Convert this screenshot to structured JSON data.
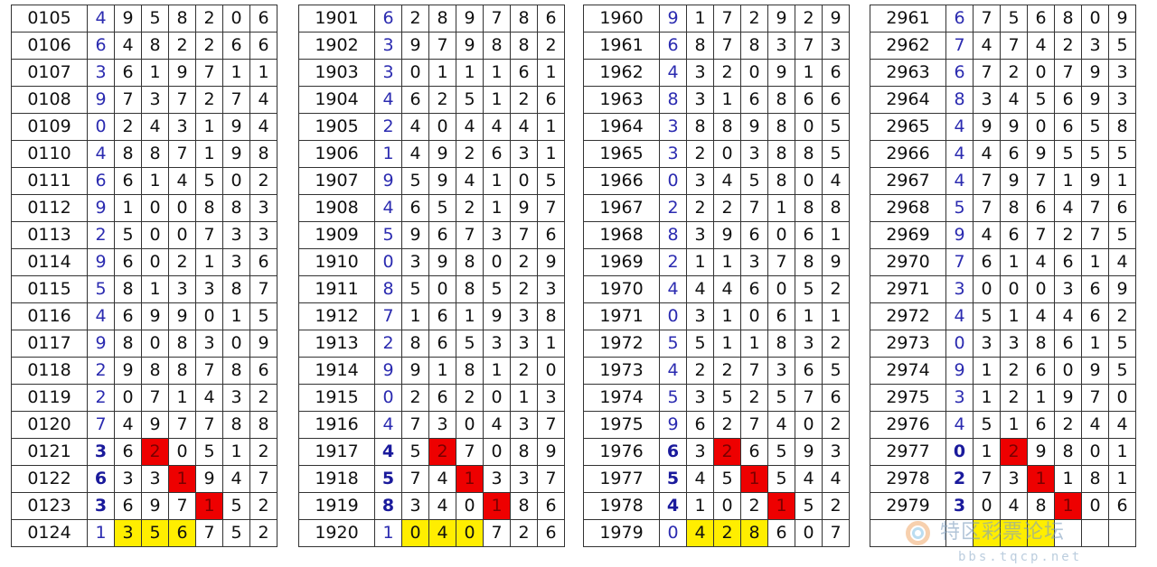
{
  "colors": {
    "first_digit": "#2b2bb0",
    "highlight_red": "#ee0000",
    "highlight_yellow": "#ffee00"
  },
  "watermark": {
    "text": "特区彩票论坛",
    "url": "bbs.tqcp.net"
  },
  "tables": [
    {
      "rows": [
        {
          "id": "0105",
          "digits": [
            "4",
            "9",
            "5",
            "8",
            "2",
            "0",
            "6"
          ]
        },
        {
          "id": "0106",
          "digits": [
            "6",
            "4",
            "8",
            "2",
            "2",
            "6",
            "6"
          ]
        },
        {
          "id": "0107",
          "digits": [
            "3",
            "6",
            "1",
            "9",
            "7",
            "1",
            "1"
          ]
        },
        {
          "id": "0108",
          "digits": [
            "9",
            "7",
            "3",
            "7",
            "2",
            "7",
            "4"
          ]
        },
        {
          "id": "0109",
          "digits": [
            "0",
            "2",
            "4",
            "3",
            "1",
            "9",
            "4"
          ]
        },
        {
          "id": "0110",
          "digits": [
            "4",
            "8",
            "8",
            "7",
            "1",
            "9",
            "8"
          ]
        },
        {
          "id": "0111",
          "digits": [
            "6",
            "6",
            "1",
            "4",
            "5",
            "0",
            "2"
          ]
        },
        {
          "id": "0112",
          "digits": [
            "9",
            "1",
            "0",
            "0",
            "8",
            "8",
            "3"
          ]
        },
        {
          "id": "0113",
          "digits": [
            "2",
            "5",
            "0",
            "0",
            "7",
            "3",
            "3"
          ]
        },
        {
          "id": "0114",
          "digits": [
            "9",
            "6",
            "0",
            "2",
            "1",
            "3",
            "6"
          ]
        },
        {
          "id": "0115",
          "digits": [
            "5",
            "8",
            "1",
            "3",
            "3",
            "8",
            "7"
          ]
        },
        {
          "id": "0116",
          "digits": [
            "4",
            "6",
            "9",
            "9",
            "0",
            "1",
            "5"
          ]
        },
        {
          "id": "0117",
          "digits": [
            "9",
            "8",
            "0",
            "8",
            "3",
            "0",
            "9"
          ]
        },
        {
          "id": "0118",
          "digits": [
            "2",
            "9",
            "8",
            "8",
            "7",
            "8",
            "6"
          ]
        },
        {
          "id": "0119",
          "digits": [
            "2",
            "0",
            "7",
            "1",
            "4",
            "3",
            "2"
          ]
        },
        {
          "id": "0120",
          "digits": [
            "7",
            "4",
            "9",
            "7",
            "7",
            "8",
            "8"
          ]
        },
        {
          "id": "0121",
          "digits": [
            "3",
            "6",
            "2",
            "0",
            "5",
            "1",
            "2"
          ]
        },
        {
          "id": "0122",
          "digits": [
            "6",
            "3",
            "3",
            "1",
            "9",
            "4",
            "7"
          ]
        },
        {
          "id": "0123",
          "digits": [
            "3",
            "6",
            "9",
            "7",
            "1",
            "5",
            "2"
          ]
        },
        {
          "id": "0124",
          "digits": [
            "1",
            "3",
            "5",
            "6",
            "7",
            "5",
            "2"
          ]
        }
      ]
    },
    {
      "rows": [
        {
          "id": "1901",
          "digits": [
            "6",
            "2",
            "8",
            "9",
            "7",
            "8",
            "6"
          ]
        },
        {
          "id": "1902",
          "digits": [
            "3",
            "9",
            "7",
            "9",
            "8",
            "8",
            "2"
          ]
        },
        {
          "id": "1903",
          "digits": [
            "3",
            "0",
            "1",
            "1",
            "1",
            "6",
            "1"
          ]
        },
        {
          "id": "1904",
          "digits": [
            "4",
            "6",
            "2",
            "5",
            "1",
            "2",
            "6"
          ]
        },
        {
          "id": "1905",
          "digits": [
            "2",
            "4",
            "0",
            "4",
            "4",
            "4",
            "1"
          ]
        },
        {
          "id": "1906",
          "digits": [
            "1",
            "4",
            "9",
            "2",
            "6",
            "3",
            "1"
          ]
        },
        {
          "id": "1907",
          "digits": [
            "9",
            "5",
            "9",
            "4",
            "1",
            "0",
            "5"
          ]
        },
        {
          "id": "1908",
          "digits": [
            "4",
            "6",
            "5",
            "2",
            "1",
            "9",
            "7"
          ]
        },
        {
          "id": "1909",
          "digits": [
            "5",
            "9",
            "6",
            "7",
            "3",
            "7",
            "6"
          ]
        },
        {
          "id": "1910",
          "digits": [
            "0",
            "3",
            "9",
            "8",
            "0",
            "2",
            "9"
          ]
        },
        {
          "id": "1911",
          "digits": [
            "8",
            "5",
            "0",
            "8",
            "5",
            "2",
            "3"
          ]
        },
        {
          "id": "1912",
          "digits": [
            "7",
            "1",
            "6",
            "1",
            "9",
            "3",
            "8"
          ]
        },
        {
          "id": "1913",
          "digits": [
            "2",
            "8",
            "6",
            "5",
            "3",
            "3",
            "1"
          ]
        },
        {
          "id": "1914",
          "digits": [
            "9",
            "9",
            "1",
            "8",
            "1",
            "2",
            "0"
          ]
        },
        {
          "id": "1915",
          "digits": [
            "0",
            "2",
            "6",
            "2",
            "0",
            "1",
            "3"
          ]
        },
        {
          "id": "1916",
          "digits": [
            "4",
            "7",
            "3",
            "0",
            "4",
            "3",
            "7"
          ]
        },
        {
          "id": "1917",
          "digits": [
            "4",
            "5",
            "2",
            "7",
            "0",
            "8",
            "9"
          ]
        },
        {
          "id": "1918",
          "digits": [
            "5",
            "7",
            "4",
            "1",
            "3",
            "3",
            "7"
          ]
        },
        {
          "id": "1919",
          "digits": [
            "8",
            "3",
            "4",
            "0",
            "1",
            "8",
            "6"
          ]
        },
        {
          "id": "1920",
          "digits": [
            "1",
            "0",
            "4",
            "0",
            "7",
            "2",
            "6"
          ]
        }
      ]
    },
    {
      "rows": [
        {
          "id": "1960",
          "digits": [
            "9",
            "1",
            "7",
            "2",
            "9",
            "2",
            "9"
          ]
        },
        {
          "id": "1961",
          "digits": [
            "6",
            "8",
            "7",
            "8",
            "3",
            "7",
            "3"
          ]
        },
        {
          "id": "1962",
          "digits": [
            "4",
            "3",
            "2",
            "0",
            "9",
            "1",
            "6"
          ]
        },
        {
          "id": "1963",
          "digits": [
            "8",
            "3",
            "1",
            "6",
            "8",
            "6",
            "6"
          ]
        },
        {
          "id": "1964",
          "digits": [
            "3",
            "8",
            "8",
            "9",
            "8",
            "0",
            "5"
          ]
        },
        {
          "id": "1965",
          "digits": [
            "3",
            "2",
            "0",
            "3",
            "8",
            "8",
            "5"
          ]
        },
        {
          "id": "1966",
          "digits": [
            "0",
            "3",
            "4",
            "5",
            "8",
            "0",
            "4"
          ]
        },
        {
          "id": "1967",
          "digits": [
            "2",
            "2",
            "2",
            "7",
            "1",
            "8",
            "8"
          ]
        },
        {
          "id": "1968",
          "digits": [
            "8",
            "3",
            "9",
            "6",
            "0",
            "6",
            "1"
          ]
        },
        {
          "id": "1969",
          "digits": [
            "2",
            "1",
            "1",
            "3",
            "7",
            "8",
            "9"
          ]
        },
        {
          "id": "1970",
          "digits": [
            "4",
            "4",
            "4",
            "6",
            "0",
            "5",
            "2"
          ]
        },
        {
          "id": "1971",
          "digits": [
            "0",
            "3",
            "1",
            "0",
            "6",
            "1",
            "1"
          ]
        },
        {
          "id": "1972",
          "digits": [
            "5",
            "5",
            "1",
            "1",
            "8",
            "3",
            "2"
          ]
        },
        {
          "id": "1973",
          "digits": [
            "4",
            "2",
            "2",
            "7",
            "3",
            "6",
            "5"
          ]
        },
        {
          "id": "1974",
          "digits": [
            "5",
            "3",
            "5",
            "2",
            "5",
            "7",
            "6"
          ]
        },
        {
          "id": "1975",
          "digits": [
            "9",
            "6",
            "2",
            "7",
            "4",
            "0",
            "2"
          ]
        },
        {
          "id": "1976",
          "digits": [
            "6",
            "3",
            "2",
            "6",
            "5",
            "9",
            "3"
          ]
        },
        {
          "id": "1977",
          "digits": [
            "5",
            "4",
            "5",
            "1",
            "5",
            "4",
            "4"
          ]
        },
        {
          "id": "1978",
          "digits": [
            "4",
            "1",
            "0",
            "2",
            "1",
            "5",
            "2"
          ]
        },
        {
          "id": "1979",
          "digits": [
            "0",
            "4",
            "2",
            "8",
            "6",
            "0",
            "7"
          ]
        }
      ]
    },
    {
      "rows": [
        {
          "id": "2961",
          "digits": [
            "6",
            "7",
            "5",
            "6",
            "8",
            "0",
            "9"
          ]
        },
        {
          "id": "2962",
          "digits": [
            "7",
            "4",
            "7",
            "4",
            "2",
            "3",
            "5"
          ]
        },
        {
          "id": "2963",
          "digits": [
            "6",
            "7",
            "2",
            "0",
            "7",
            "9",
            "3"
          ]
        },
        {
          "id": "2964",
          "digits": [
            "8",
            "3",
            "4",
            "5",
            "6",
            "9",
            "3"
          ]
        },
        {
          "id": "2965",
          "digits": [
            "4",
            "9",
            "9",
            "0",
            "6",
            "5",
            "8"
          ]
        },
        {
          "id": "2966",
          "digits": [
            "4",
            "4",
            "6",
            "9",
            "5",
            "5",
            "5"
          ]
        },
        {
          "id": "2967",
          "digits": [
            "4",
            "7",
            "9",
            "7",
            "1",
            "9",
            "1"
          ]
        },
        {
          "id": "2968",
          "digits": [
            "5",
            "7",
            "8",
            "6",
            "4",
            "7",
            "6"
          ]
        },
        {
          "id": "2969",
          "digits": [
            "9",
            "4",
            "6",
            "7",
            "2",
            "7",
            "5"
          ]
        },
        {
          "id": "2970",
          "digits": [
            "7",
            "6",
            "1",
            "4",
            "6",
            "1",
            "4"
          ]
        },
        {
          "id": "2971",
          "digits": [
            "3",
            "0",
            "0",
            "0",
            "3",
            "6",
            "9"
          ]
        },
        {
          "id": "2972",
          "digits": [
            "4",
            "5",
            "1",
            "4",
            "4",
            "6",
            "2"
          ]
        },
        {
          "id": "2973",
          "digits": [
            "0",
            "3",
            "3",
            "8",
            "6",
            "1",
            "5"
          ]
        },
        {
          "id": "2974",
          "digits": [
            "9",
            "1",
            "2",
            "6",
            "0",
            "9",
            "5"
          ]
        },
        {
          "id": "2975",
          "digits": [
            "3",
            "1",
            "2",
            "1",
            "9",
            "7",
            "0"
          ]
        },
        {
          "id": "2976",
          "digits": [
            "4",
            "5",
            "1",
            "6",
            "2",
            "4",
            "4"
          ]
        },
        {
          "id": "2977",
          "digits": [
            "0",
            "1",
            "2",
            "9",
            "8",
            "0",
            "1"
          ]
        },
        {
          "id": "2978",
          "digits": [
            "2",
            "7",
            "3",
            "1",
            "1",
            "8",
            "1"
          ]
        },
        {
          "id": "2979",
          "digits": [
            "3",
            "0",
            "4",
            "8",
            "1",
            "0",
            "6"
          ]
        },
        {
          "id": "",
          "digits": [
            "",
            "",
            "",
            "",
            "",
            "",
            ""
          ]
        }
      ]
    }
  ],
  "highlights": {
    "red_cells": [
      [
        16,
        2
      ],
      [
        17,
        3
      ],
      [
        18,
        4
      ]
    ],
    "yellow_cells": [
      [
        19,
        1
      ],
      [
        19,
        2
      ],
      [
        19,
        3
      ]
    ],
    "bold_first_digit_rows": [
      16,
      17,
      18
    ]
  }
}
